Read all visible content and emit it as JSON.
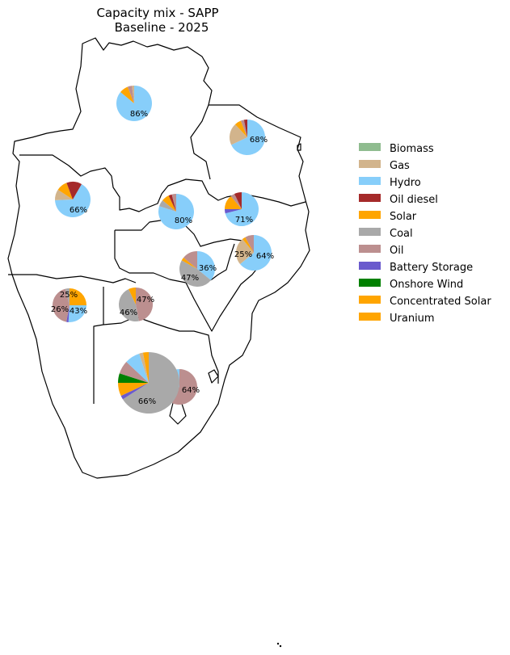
{
  "title_line1": "Capacity mix - SAPP",
  "title_line2": "Baseline - 2025",
  "legend": [
    {
      "label": "Biomass",
      "color": "#8fbc8f"
    },
    {
      "label": "Gas",
      "color": "#d2b48c"
    },
    {
      "label": "Hydro",
      "color": "#87cefa"
    },
    {
      "label": "Oil diesel",
      "color": "#a52a2a"
    },
    {
      "label": "Solar",
      "color": "#ffa500"
    },
    {
      "label": "Coal",
      "color": "#a9a9a9"
    },
    {
      "label": "Oil",
      "color": "#bc8f8f"
    },
    {
      "label": "Battery Storage",
      "color": "#6a5acd"
    },
    {
      "label": "Onshore Wind",
      "color": "#008000"
    },
    {
      "label": "Concentrated Solar",
      "color": "#ffa500"
    },
    {
      "label": "Uranium",
      "color": "#ffa500"
    }
  ],
  "chart_data": {
    "type": "pie",
    "title": "Capacity mix - SAPP Baseline - 2025",
    "pies": [
      {
        "slices": [
          {
            "tech": "Hydro",
            "share": 86
          },
          {
            "tech": "Solar",
            "share": 8
          },
          {
            "tech": "Oil",
            "share": 4
          },
          {
            "tech": "Gas",
            "share": 2
          }
        ],
        "labels": [
          "86%"
        ]
      },
      {
        "slices": [
          {
            "tech": "Hydro",
            "share": 68
          },
          {
            "tech": "Gas",
            "share": 20
          },
          {
            "tech": "Solar",
            "share": 6
          },
          {
            "tech": "Oil",
            "share": 3
          },
          {
            "tech": "Oil diesel",
            "share": 3
          }
        ],
        "labels": [
          "68%"
        ]
      },
      {
        "slices": [
          {
            "tech": "Hydro",
            "share": 66
          },
          {
            "tech": "Gas",
            "share": 10
          },
          {
            "tech": "Solar",
            "share": 10
          },
          {
            "tech": "Oil diesel",
            "share": 14
          }
        ],
        "labels": [
          "66%"
        ]
      },
      {
        "slices": [
          {
            "tech": "Hydro",
            "share": 80
          },
          {
            "tech": "Coal",
            "share": 6
          },
          {
            "tech": "Solar",
            "share": 7
          },
          {
            "tech": "Oil diesel",
            "share": 3
          },
          {
            "tech": "Oil",
            "share": 4
          }
        ],
        "labels": [
          "80%"
        ]
      },
      {
        "slices": [
          {
            "tech": "Hydro",
            "share": 71
          },
          {
            "tech": "Battery Storage",
            "share": 4
          },
          {
            "tech": "Solar",
            "share": 14
          },
          {
            "tech": "Oil",
            "share": 4
          },
          {
            "tech": "Oil diesel",
            "share": 7
          }
        ],
        "labels": [
          "71%"
        ]
      },
      {
        "slices": [
          {
            "tech": "Hydro",
            "share": 64
          },
          {
            "tech": "Gas",
            "share": 25
          },
          {
            "tech": "Solar",
            "share": 3
          },
          {
            "tech": "Oil",
            "share": 8
          }
        ],
        "labels": [
          "25%",
          "64%"
        ]
      },
      {
        "slices": [
          {
            "tech": "Hydro",
            "share": 36
          },
          {
            "tech": "Coal",
            "share": 47
          },
          {
            "tech": "Solar",
            "share": 3
          },
          {
            "tech": "Oil",
            "share": 14
          }
        ],
        "labels": [
          "36%",
          "47%"
        ]
      },
      {
        "slices": [
          {
            "tech": "Solar",
            "share": 25
          },
          {
            "tech": "Hydro",
            "share": 26
          },
          {
            "tech": "Battery Storage",
            "share": 2
          },
          {
            "tech": "Oil",
            "share": 43
          },
          {
            "tech": "Coal",
            "share": 4
          }
        ],
        "labels": [
          "25%",
          "26%",
          "43%"
        ]
      },
      {
        "slices": [
          {
            "tech": "Oil",
            "share": 47
          },
          {
            "tech": "Coal",
            "share": 46
          },
          {
            "tech": "Solar",
            "share": 7
          }
        ],
        "labels": [
          "47%",
          "46%"
        ]
      },
      {
        "slices": [
          {
            "tech": "Coal",
            "share": 66
          },
          {
            "tech": "Battery Storage",
            "share": 2
          },
          {
            "tech": "Solar",
            "share": 7
          },
          {
            "tech": "Onshore Wind",
            "share": 5
          },
          {
            "tech": "Oil",
            "share": 7
          },
          {
            "tech": "Hydro",
            "share": 8
          },
          {
            "tech": "Gas",
            "share": 2
          },
          {
            "tech": "Uranium",
            "share": 3
          }
        ],
        "labels": [
          "66%"
        ]
      },
      {
        "slices": [
          {
            "tech": "Oil",
            "share": 64
          },
          {
            "tech": "Hydro",
            "share": 36
          }
        ],
        "labels": [
          "64%"
        ]
      }
    ]
  }
}
